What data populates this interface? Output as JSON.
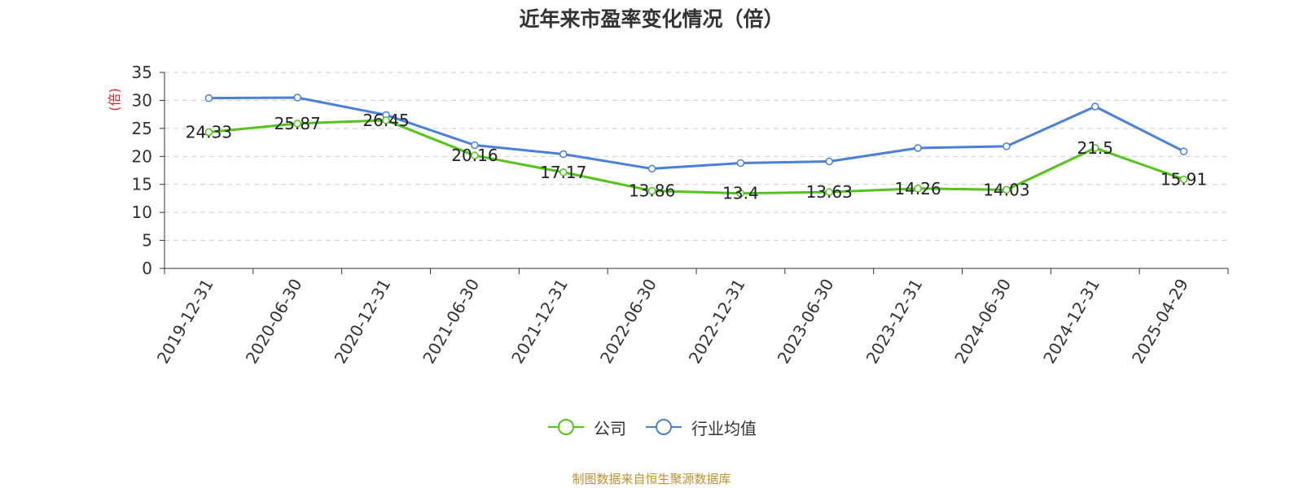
{
  "title": "近年来市盈率变化情况（倍）",
  "source": "制图数据来自恒生聚源数据库",
  "chart_data": {
    "type": "line",
    "title": "近年来市盈率变化情况（倍）",
    "ylabel": "(倍)",
    "xlabel": "",
    "ylim": [
      0,
      35
    ],
    "yticks": [
      "0",
      "5",
      "10",
      "15",
      "20",
      "25",
      "30",
      "35"
    ],
    "grid": true,
    "legend_position": "bottom-center",
    "categories": [
      "2019-12-31",
      "2020-06-30",
      "2020-12-31",
      "2021-06-30",
      "2021-12-31",
      "2022-06-30",
      "2022-12-31",
      "2023-06-30",
      "2023-12-31",
      "2024-06-30",
      "2024-12-31",
      "2025-04-29"
    ],
    "series": [
      {
        "name": "公司",
        "color": "#52c41a",
        "values": [
          24.33,
          25.87,
          26.45,
          20.16,
          17.17,
          13.86,
          13.4,
          13.63,
          14.26,
          14.03,
          21.5,
          15.91
        ],
        "data_labels": [
          "24.33",
          "25.87",
          "26.45",
          "20.16",
          "17.17",
          "13.86",
          "13.4",
          "13.63",
          "14.26",
          "14.03",
          "21.5",
          "15.91"
        ]
      },
      {
        "name": "行业均值",
        "color": "#4a7fdc",
        "values": [
          30.4,
          30.5,
          27.4,
          22.0,
          20.4,
          17.8,
          18.8,
          19.1,
          21.5,
          21.8,
          28.9,
          20.9
        ]
      }
    ]
  }
}
